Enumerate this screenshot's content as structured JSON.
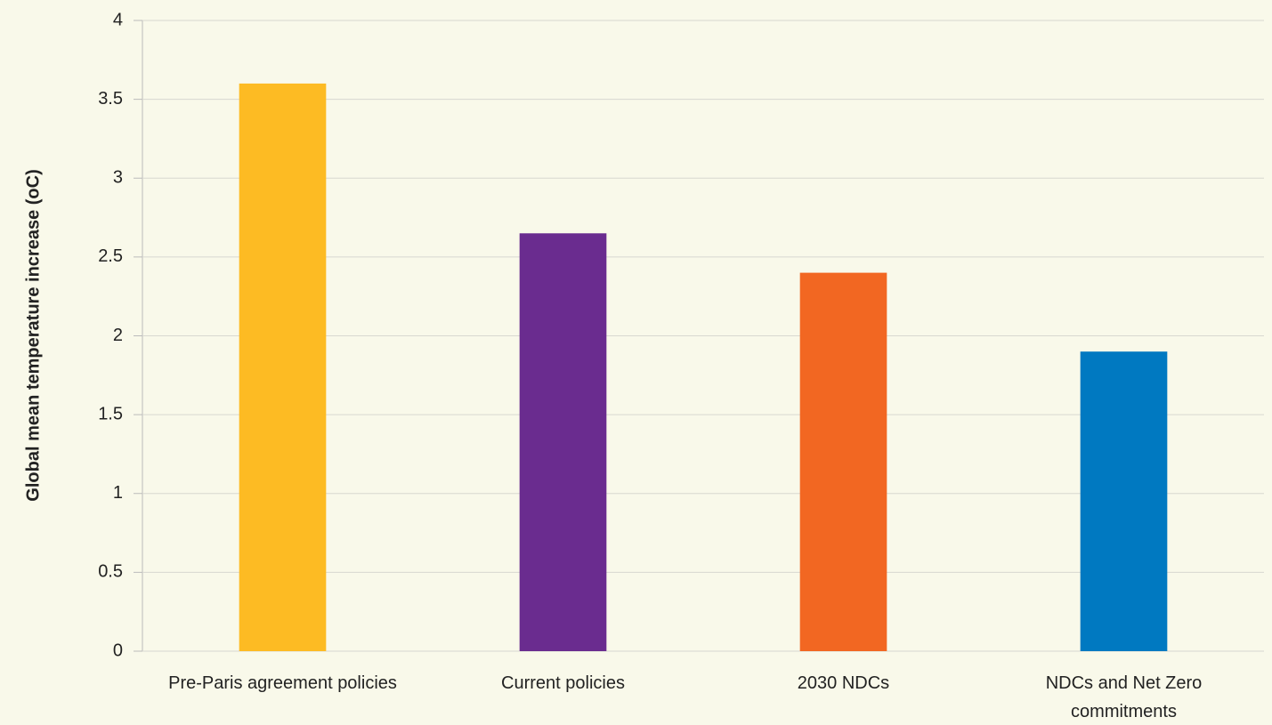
{
  "chart_data": {
    "type": "bar",
    "y_label": "Global mean temperature increase (oC)",
    "categories": [
      "Pre-Paris agreement policies",
      "Current policies",
      "2030 NDCs",
      "NDCs and Net Zero commitments"
    ],
    "values": [
      3.6,
      2.65,
      2.4,
      1.9
    ],
    "colors": [
      "#fdbb23",
      "#6a2c8f",
      "#f26722",
      "#0079c1"
    ],
    "ylim": [
      0,
      4
    ],
    "yticks": [
      0,
      0.5,
      1,
      1.5,
      2,
      2.5,
      3,
      3.5,
      4
    ],
    "grid": true
  }
}
